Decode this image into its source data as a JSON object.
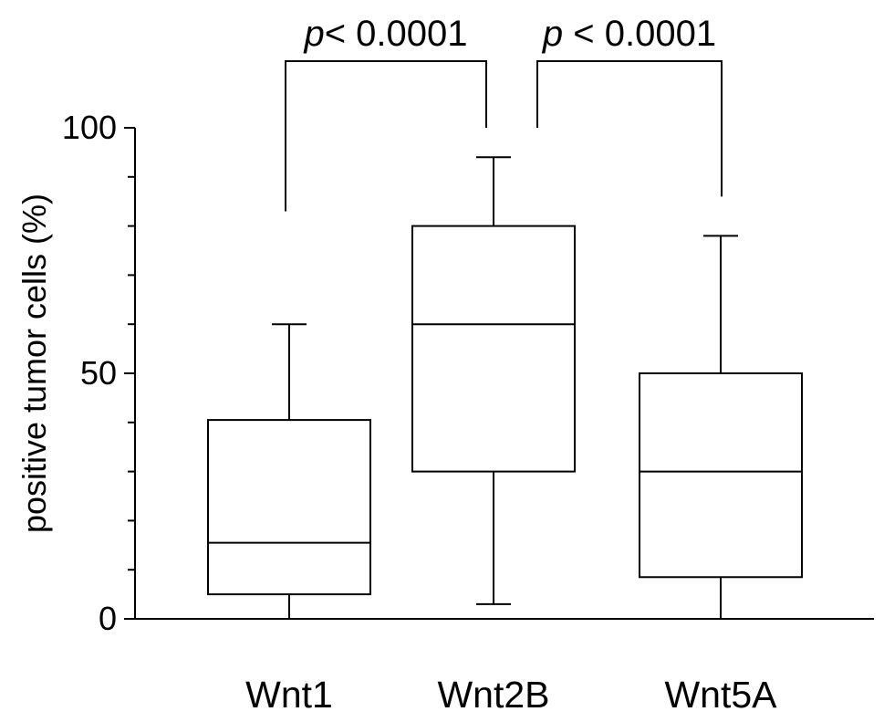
{
  "chart_data": {
    "type": "boxplot",
    "title": "",
    "xlabel": "",
    "ylabel": "positive tumor cells (%)",
    "ylim": [
      0,
      100
    ],
    "y_ticks_labeled": [
      0,
      50,
      100
    ],
    "y_ticks_minor": [
      10,
      20,
      30,
      40,
      60,
      70,
      80,
      90
    ],
    "grid": false,
    "categories": [
      "Wnt1",
      "Wnt2B",
      "Wnt5A"
    ],
    "boxes": [
      {
        "name": "Wnt1",
        "min": 0,
        "q1": 5,
        "median": 15.5,
        "q3": 40.5,
        "max": 60
      },
      {
        "name": "Wnt2B",
        "min": 3,
        "q1": 30,
        "median": 60,
        "q3": 80,
        "max": 94
      },
      {
        "name": "Wnt5A",
        "min": 0,
        "q1": 8.5,
        "median": 30,
        "q3": 50,
        "max": 78
      }
    ],
    "comparisons": [
      {
        "from": "Wnt1",
        "to": "Wnt2B",
        "p_prefix": "p",
        "label": "< 0.0001",
        "left_y": 83,
        "right_y": 100
      },
      {
        "from": "Wnt2B",
        "to": "Wnt5A",
        "p_prefix": "p",
        "label": " < 0.0001",
        "left_y": 100,
        "right_y": 86
      }
    ]
  }
}
